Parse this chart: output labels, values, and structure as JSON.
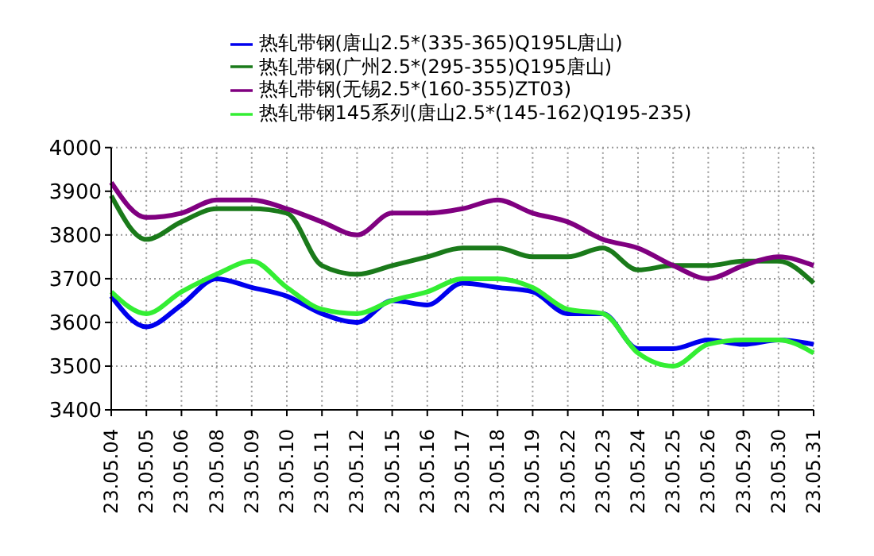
{
  "chart_data": {
    "type": "line",
    "categories": [
      "23.05.04",
      "23.05.05",
      "23.05.06",
      "23.05.08",
      "23.05.09",
      "23.05.10",
      "23.05.11",
      "23.05.12",
      "23.05.15",
      "23.05.16",
      "23.05.17",
      "23.05.18",
      "23.05.19",
      "23.05.22",
      "23.05.23",
      "23.05.24",
      "23.05.25",
      "23.05.26",
      "23.05.29",
      "23.05.30",
      "23.05.31"
    ],
    "series": [
      {
        "name": "热轧带钢(广州2.5*(295-355)Q195唐山)",
        "color": "#1a7a1a",
        "values": [
          3890,
          3790,
          3830,
          3860,
          3860,
          3850,
          3730,
          3710,
          3730,
          3750,
          3770,
          3770,
          3750,
          3750,
          3770,
          3720,
          3730,
          3730,
          3740,
          3740,
          3690
        ]
      },
      {
        "name": "热轧带钢(唐山2.5*(335-365)Q195L唐山)",
        "color": "#0000ee",
        "values": [
          3660,
          3590,
          3640,
          3700,
          3680,
          3660,
          3620,
          3600,
          3650,
          3640,
          3690,
          3680,
          3670,
          3620,
          3620,
          3540,
          3540,
          3560,
          3550,
          3560,
          3550
        ]
      },
      {
        "name": "热轧带钢(无锡2.5*(160-355)ZT03)",
        "color": "#800080",
        "values": [
          3920,
          3840,
          3850,
          3880,
          3880,
          3860,
          3830,
          3800,
          3850,
          3850,
          3860,
          3880,
          3850,
          3830,
          3790,
          3770,
          3730,
          3700,
          3730,
          3750,
          3730
        ]
      },
      {
        "name": "热轧带钢145系列(唐山2.5*(145-162)Q195-235)",
        "color": "#33ee33",
        "values": [
          3670,
          3620,
          3670,
          3710,
          3740,
          3680,
          3630,
          3620,
          3650,
          3670,
          3700,
          3700,
          3680,
          3630,
          3620,
          3530,
          3500,
          3550,
          3560,
          3560,
          3530
        ]
      }
    ],
    "ylim": [
      3400,
      4000
    ],
    "yticks": [
      3400,
      3500,
      3600,
      3700,
      3800,
      3900,
      4000
    ],
    "grid": true,
    "legend": "top",
    "marker": "none",
    "line_style": "solid"
  }
}
